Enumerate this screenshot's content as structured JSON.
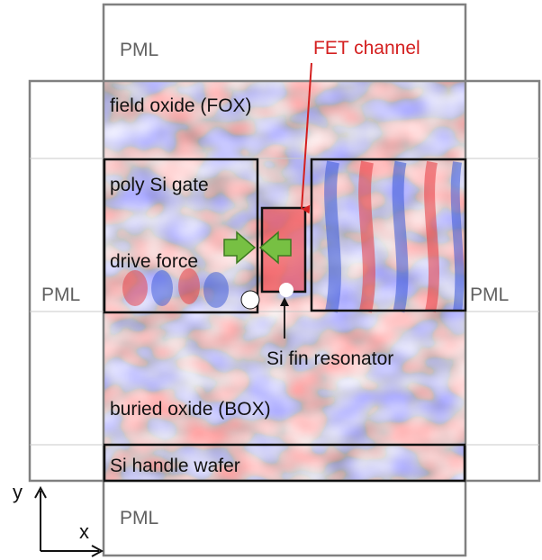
{
  "labels": {
    "pml_top": "PML",
    "pml_left": "PML",
    "pml_right": "PML",
    "pml_bottom": "PML",
    "fet_channel": "FET channel",
    "field_oxide": "field oxide (FOX)",
    "poly_gate": "poly Si gate",
    "drive_force": "drive force",
    "si_fin": "Si fin resonator",
    "buried_oxide": "buried oxide (BOX)",
    "si_handle": "Si handle wafer",
    "axis_y": "y",
    "axis_x": "x"
  },
  "colors": {
    "field_positive": "#e8303a",
    "field_negative": "#2e4fd8",
    "outline": "#111111",
    "pml_frame": "#808080",
    "pml_divider": "#c8c8c8",
    "arrow_fill": "#77c043",
    "arrow_stroke": "#3d7a20",
    "annotation_red": "#d42020",
    "label_gray": "#606060"
  }
}
